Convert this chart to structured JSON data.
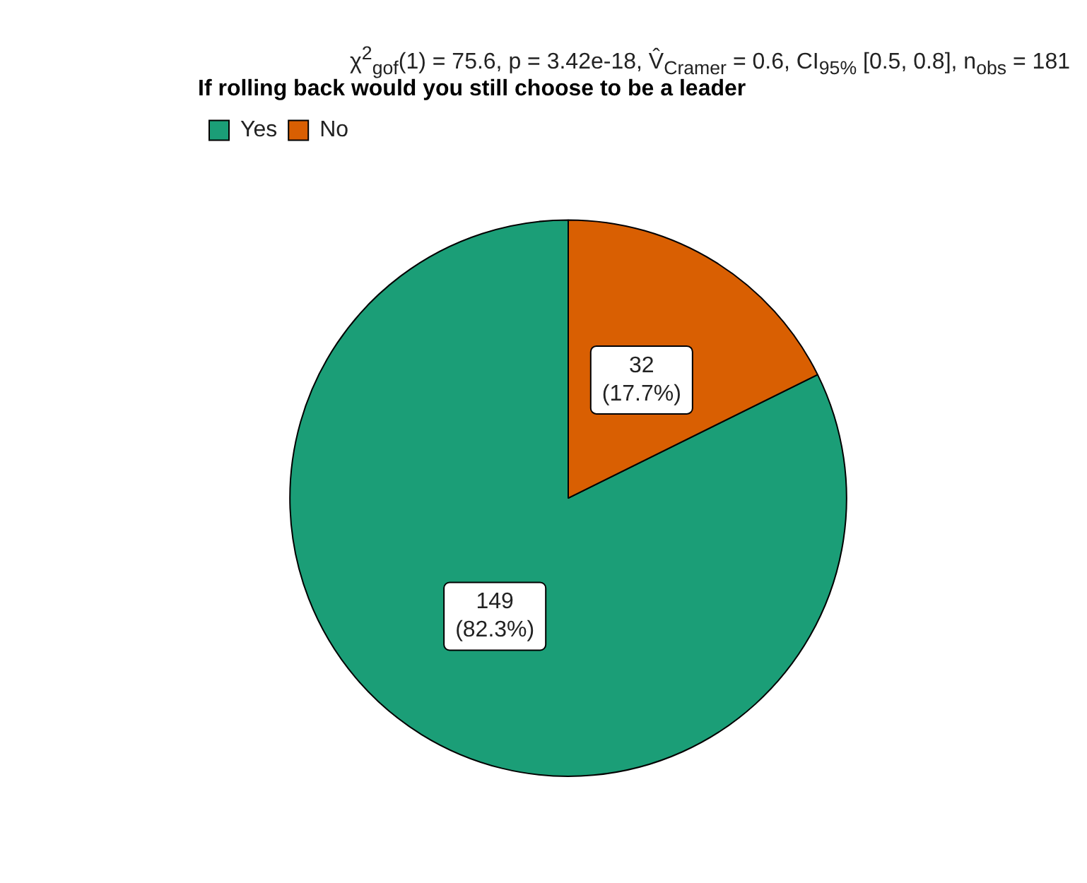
{
  "chart_data": {
    "type": "pie",
    "title": "χ$^{2}$$_{gof}$(1) = 75.6, p = 3.42e-18, V̂$_{Cramer}$ = 0.6, CI$_{95%}$ [0.5, 0.8], n$_{obs}$ = 181",
    "legend_title": "If rolling back would you still choose to be a leader",
    "categories": [
      "Yes",
      "No"
    ],
    "values": [
      149,
      32
    ],
    "colors": [
      "#1b9e77",
      "#d95f02"
    ],
    "value_labels": [
      "149\n(82.3%)",
      "32\n(17.7%)"
    ],
    "legend": "top left"
  }
}
